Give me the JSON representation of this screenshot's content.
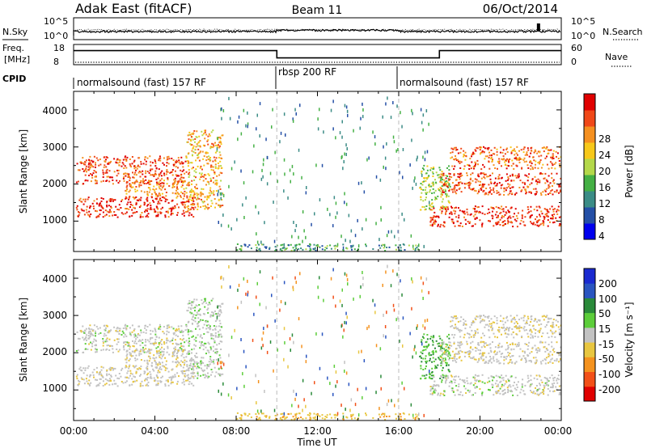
{
  "header": {
    "title_left": "Adak East (fitACF)",
    "title_center": "Beam 11",
    "title_right": "06/Oct/2014"
  },
  "noise_panel": {
    "left_label": "N.Sky",
    "right_label": "N.Search",
    "left_ticks": [
      "10^5",
      "10^0"
    ],
    "right_ticks": [
      "10^5",
      "10^0"
    ]
  },
  "freq_panel": {
    "left_label_1": "Freq.",
    "left_label_2": "[MHz]",
    "right_label": "Nave",
    "left_ticks": [
      "18",
      "8"
    ],
    "right_ticks": [
      "60",
      "0"
    ]
  },
  "cpid_panel": {
    "label": "CPID",
    "segments": [
      "normalsound (fast) 157 RF",
      "rbsp 200 RF",
      "normalsound (fast) 157 RF"
    ]
  },
  "x_axis": {
    "label": "Time UT",
    "ticks": [
      "00:00",
      "04:00",
      "08:00",
      "12:00",
      "16:00",
      "20:00",
      "00:00"
    ]
  },
  "power_panel": {
    "ylabel": "Slant Range [km]",
    "yticks": [
      "1000",
      "2000",
      "3000",
      "4000"
    ],
    "colorbar_label": "Power [dB]",
    "colorbar_ticks": [
      "28",
      "24",
      "20",
      "16",
      "12",
      "8",
      "4"
    ],
    "colors": [
      "#0000ee",
      "#244fa6",
      "#3b8c86",
      "#44b044",
      "#b4d84a",
      "#f7c81a",
      "#f59020",
      "#f04818",
      "#e00000"
    ]
  },
  "velocity_panel": {
    "ylabel": "Slant Range [km]",
    "yticks": [
      "1000",
      "2000",
      "3000",
      "4000"
    ],
    "colorbar_label": "Velocity [m s⁻¹]",
    "colorbar_ticks": [
      "200",
      "100",
      "50",
      "15",
      "-15",
      "-50",
      "-100",
      "-200"
    ],
    "colors": [
      "#1a2ad0",
      "#2a55c0",
      "#2a8a3a",
      "#5ccd3a",
      "#c2c2c2",
      "#e8c640",
      "#f4921e",
      "#f25018",
      "#e00000"
    ]
  },
  "chart_data": {
    "type": "heatmap",
    "x_range_hours": [
      0,
      24
    ],
    "y_range_km": [
      180,
      4500
    ],
    "mode_changes_hours": [
      10,
      16
    ],
    "freq_mhz_segments": [
      {
        "start": 0,
        "end": 10,
        "value": 16
      },
      {
        "start": 10,
        "end": 18,
        "value": 11
      },
      {
        "start": 18,
        "end": 24,
        "value": 16
      }
    ],
    "scatter_bands": [
      {
        "t0": 0.1,
        "t1": 6.0,
        "r0": 1100,
        "r1": 1650,
        "power": 28,
        "velocity": -5
      },
      {
        "t0": 0.1,
        "t1": 5.5,
        "r0": 2000,
        "r1": 2750,
        "power": 26,
        "velocity": 0
      },
      {
        "t0": 2.5,
        "t1": 5.5,
        "r0": 1600,
        "r1": 2100,
        "power": 22,
        "velocity": -10
      },
      {
        "t0": 5.5,
        "t1": 7.3,
        "r0": 1300,
        "r1": 3450,
        "power": 20,
        "velocity": 5
      },
      {
        "t0": 17.0,
        "t1": 18.5,
        "r0": 1300,
        "r1": 2500,
        "power": 14,
        "velocity": 45
      },
      {
        "t0": 17.5,
        "t1": 24.0,
        "r0": 850,
        "r1": 1400,
        "power": 28,
        "velocity": 0
      },
      {
        "t0": 18.0,
        "t1": 24.0,
        "r0": 1700,
        "r1": 2300,
        "power": 26,
        "velocity": -5
      },
      {
        "t0": 18.5,
        "t1": 24.0,
        "r0": 2400,
        "r1": 3000,
        "power": 24,
        "velocity": -10
      },
      {
        "t0": 8.0,
        "t1": 17.0,
        "r0": 200,
        "r1": 380,
        "power": 8,
        "velocity": -40
      }
    ]
  }
}
